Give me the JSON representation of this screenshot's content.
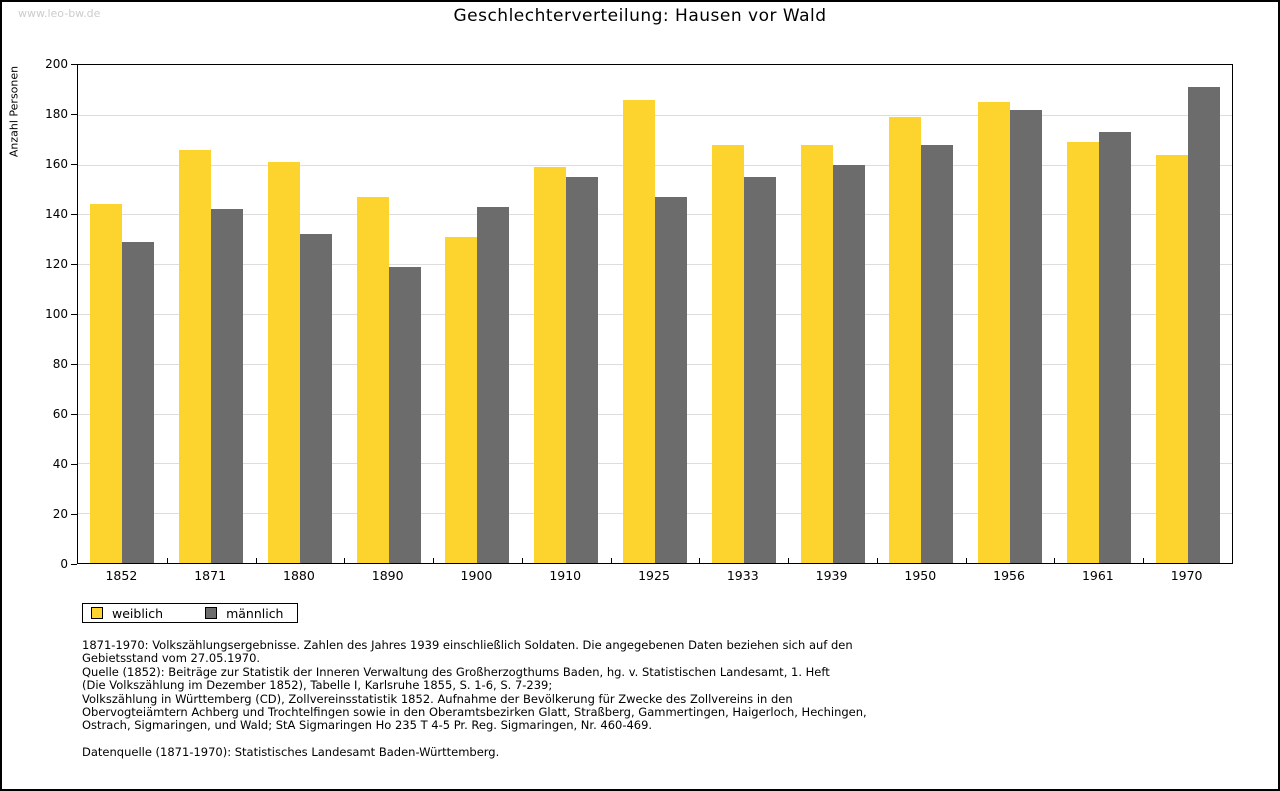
{
  "watermark": "www.leo-bw.de",
  "chart_data": {
    "type": "bar",
    "title": "Geschlechterverteilung: Hausen vor Wald",
    "xlabel": "",
    "ylabel": "Anzahl Personen",
    "ylim": [
      0,
      200
    ],
    "ytick_step": 20,
    "grid": true,
    "legend_position": "bottom-left",
    "categories": [
      "1852",
      "1871",
      "1880",
      "1890",
      "1900",
      "1910",
      "1925",
      "1933",
      "1939",
      "1950",
      "1956",
      "1961",
      "1970"
    ],
    "series": [
      {
        "name": "weiblich",
        "color": "#FDD42E",
        "values": [
          144,
          166,
          161,
          147,
          131,
          159,
          186,
          168,
          168,
          179,
          185,
          169,
          164
        ]
      },
      {
        "name": "männlich",
        "color": "#6C6C6C",
        "values": [
          129,
          142,
          132,
          119,
          143,
          155,
          147,
          155,
          160,
          168,
          182,
          173,
          191
        ]
      }
    ]
  },
  "legend": {
    "items": [
      {
        "label": "weiblich",
        "color": "#FDD42E"
      },
      {
        "label": "männlich",
        "color": "#6C6C6C"
      }
    ]
  },
  "footnotes": [
    "1871-1970: Volkszählungsergebnisse. Zahlen des Jahres 1939 einschließlich Soldaten. Die angegebenen Daten beziehen sich auf den",
    "Gebietsstand vom 27.05.1970.",
    "Quelle (1852): Beiträge zur Statistik der Inneren Verwaltung des Großherzogthums Baden, hg. v. Statistischen Landesamt, 1. Heft",
    "(Die Volkszählung im Dezember 1852), Tabelle I, Karlsruhe 1855, S. 1-6, S. 7-239;",
    "Volkszählung in Württemberg (CD), Zollvereinsstatistik 1852. Aufnahme der Bevölkerung für Zwecke des Zollvereins in den",
    "Obervogteiämtern Achberg und Trochtelfingen sowie in den Oberamtsbezirken Glatt, Straßberg, Gammertingen, Haigerloch, Hechingen,",
    "Ostrach, Sigmaringen, und Wald; StA Sigmaringen Ho 235 T 4-5 Pr. Reg. Sigmaringen, Nr. 460-469."
  ],
  "datasource": "Datenquelle (1871-1970): Statistisches Landesamt Baden-Württemberg.",
  "colors": {
    "gridline": "#dddddd",
    "axis": "#000000",
    "watermark": "#cccccc",
    "background": "#ffffff"
  }
}
